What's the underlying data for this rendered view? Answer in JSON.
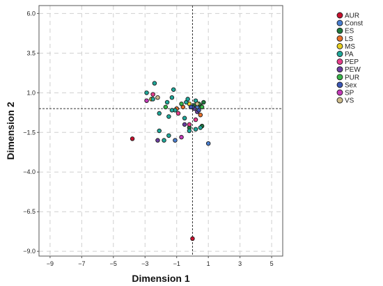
{
  "chart_data": {
    "type": "scatter",
    "title": "",
    "xlabel": "Dimension 1",
    "ylabel": "Dimension 2",
    "xlim": [
      -9.7,
      5.7
    ],
    "ylim": [
      -9.3,
      6.5
    ],
    "xticks": [
      -9,
      -7,
      -5,
      -3,
      -1,
      1,
      3,
      5
    ],
    "yticks": [
      6.0,
      3.5,
      1.0,
      -1.5,
      -4.0,
      -6.5,
      -9.0
    ],
    "xtick_labels": [
      "−9",
      "−7",
      "−5",
      "−3",
      "−1",
      "1",
      "3",
      "5"
    ],
    "ytick_labels": [
      "6.0",
      "3.5",
      "1.0",
      "−1.5",
      "−4.0",
      "−6.5",
      "−9.0"
    ],
    "reference_lines": {
      "x": 0,
      "y": 0
    },
    "grid": true,
    "legend_position": "right",
    "series": [
      {
        "name": "AUR",
        "color": "#c8102e",
        "points": [
          [
            -3.8,
            -1.9
          ],
          [
            0,
            -8.2
          ]
        ]
      },
      {
        "name": "Const",
        "color": "#4a7fd1",
        "points": [
          [
            0.3,
            0.1
          ],
          [
            1.0,
            -2.2
          ],
          [
            -1.1,
            -2.0
          ]
        ]
      },
      {
        "name": "ES",
        "color": "#1f7a3d",
        "points": [
          [
            0.5,
            0.2
          ],
          [
            0.6,
            -1.1
          ],
          [
            -0.2,
            -1.2
          ],
          [
            0.1,
            0.2
          ],
          [
            0.7,
            0.4
          ]
        ]
      },
      {
        "name": "LS",
        "color": "#e8702a",
        "points": [
          [
            -1.0,
            0.0
          ],
          [
            -0.6,
            0.1
          ],
          [
            0.5,
            -0.4
          ]
        ]
      },
      {
        "name": "MS",
        "color": "#e6cf1f",
        "points": [
          [
            -0.2,
            0.3
          ],
          [
            -2.6,
            0.6
          ]
        ]
      },
      {
        "name": "PA",
        "color": "#1fa89a",
        "points": [
          [
            -2.4,
            1.6
          ],
          [
            -1.2,
            1.2
          ],
          [
            -2.9,
            1.0
          ],
          [
            -2.5,
            0.6
          ],
          [
            -1.3,
            0.7
          ],
          [
            -1.6,
            0.4
          ],
          [
            -1.1,
            -0.1
          ],
          [
            -1.5,
            -0.5
          ],
          [
            -2.1,
            -1.4
          ],
          [
            -1.5,
            -1.7
          ],
          [
            -1.8,
            -2.0
          ],
          [
            -0.5,
            -0.6
          ],
          [
            -0.2,
            -1.4
          ],
          [
            0.2,
            -1.3
          ],
          [
            0.5,
            -1.2
          ],
          [
            -0.4,
            0.4
          ],
          [
            -0.3,
            0.6
          ],
          [
            0.2,
            0.5
          ],
          [
            -2.1,
            -0.3
          ],
          [
            -1.3,
            -0.1
          ]
        ]
      },
      {
        "name": "PEP",
        "color": "#e83e8c",
        "points": [
          [
            -2.5,
            0.9
          ],
          [
            -0.2,
            -1.0
          ],
          [
            -0.9,
            -0.3
          ],
          [
            0.2,
            -0.7
          ]
        ]
      },
      {
        "name": "PEW",
        "color": "#6b3fa0",
        "points": [
          [
            -2.2,
            -2.0
          ],
          [
            -0.5,
            -1.0
          ],
          [
            0.1,
            0.0
          ],
          [
            0.3,
            -0.2
          ]
        ]
      },
      {
        "name": "PUR",
        "color": "#3ab54a",
        "points": [
          [
            -1.7,
            0.1
          ],
          [
            -0.7,
            0.3
          ],
          [
            0.4,
            0.3
          ],
          [
            0.6,
            0.1
          ]
        ]
      },
      {
        "name": "Sex",
        "color": "#3b56b5",
        "points": [
          [
            0.0,
            0.1
          ],
          [
            -0.1,
            0.1
          ],
          [
            0.4,
            -0.1
          ]
        ]
      },
      {
        "name": "SP",
        "color": "#c43ab8",
        "points": [
          [
            -2.9,
            0.5
          ],
          [
            -0.7,
            -1.8
          ]
        ]
      },
      {
        "name": "VS",
        "color": "#cdbb8a",
        "points": [
          [
            0.3,
            0.3
          ],
          [
            -2.2,
            0.7
          ]
        ]
      }
    ]
  }
}
